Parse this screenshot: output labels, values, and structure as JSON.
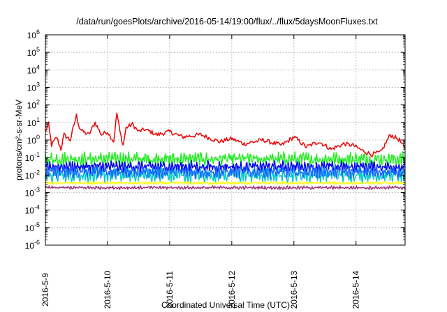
{
  "chart_data": {
    "type": "line",
    "title": "/data/run/goesPlots/archive/2016-05-14/19:00/flux/../flux/5daysMoonFluxes.txt",
    "xlabel": "Coordinated Universal Time (UTC)",
    "ylabel": "protons/cm²-s-sr-MeV",
    "yscale": "log",
    "ylim": [
      1e-06,
      1000000.0
    ],
    "xlim": [
      "2016-5-9",
      "2016-5-14 19:00"
    ],
    "y_ticks": [
      {
        "base": "10",
        "exp": "-6"
      },
      {
        "base": "10",
        "exp": "-5"
      },
      {
        "base": "10",
        "exp": "-4"
      },
      {
        "base": "10",
        "exp": "-3"
      },
      {
        "base": "10",
        "exp": "-2"
      },
      {
        "base": "10",
        "exp": "-1"
      },
      {
        "base": "10",
        "exp": "0"
      },
      {
        "base": "10",
        "exp": "1"
      },
      {
        "base": "10",
        "exp": "2"
      },
      {
        "base": "10",
        "exp": "3"
      },
      {
        "base": "10",
        "exp": "4"
      },
      {
        "base": "10",
        "exp": "5"
      },
      {
        "base": "10",
        "exp": "6"
      }
    ],
    "x_ticks": [
      "2016-5-9",
      "2016-5-10",
      "2016-5-11",
      "2016-5-12",
      "2016-5-13",
      "2016-5-14"
    ],
    "grid": true,
    "series": [
      {
        "color": "#ee0000",
        "x": [
          0,
          0.05,
          0.1,
          0.18,
          0.25,
          0.3,
          0.4,
          0.5,
          0.55,
          0.6,
          0.7,
          0.8,
          0.9,
          1.0,
          1.1,
          1.15,
          1.2,
          1.25,
          1.3,
          1.4,
          1.5,
          1.6,
          1.8,
          2.0,
          2.2,
          2.5,
          2.8,
          3.0,
          3.2,
          3.5,
          3.8,
          4.0,
          4.2,
          4.4,
          4.6,
          4.8,
          4.95,
          5.1,
          5.25,
          5.4,
          5.55,
          5.7,
          5.79
        ],
        "y": [
          3,
          8,
          0.5,
          1.5,
          0.3,
          2,
          1,
          25,
          5,
          3,
          2,
          10,
          2,
          3,
          0.8,
          35,
          3,
          0.5,
          5,
          8,
          3,
          4,
          2,
          3,
          1.5,
          2,
          0.8,
          1.2,
          0.6,
          1,
          0.5,
          1.5,
          0.4,
          0.8,
          0.3,
          0.6,
          0.5,
          0.25,
          0.15,
          0.2,
          2,
          1,
          0.3
        ]
      },
      {
        "color": "#22ee22",
        "x": [
          0,
          5.79
        ],
        "y": [
          0.08,
          0.08
        ],
        "amp": 0.5
      },
      {
        "color": "#00cccc",
        "x": [
          0,
          5.79
        ],
        "y": [
          0.01,
          0.01
        ],
        "amp": 0.55
      },
      {
        "color": "#0000ee",
        "x": [
          0,
          5.79
        ],
        "y": [
          0.03,
          0.03
        ],
        "amp": 0.4
      },
      {
        "color": "#1a66ff",
        "x": [
          0,
          5.79
        ],
        "y": [
          0.015,
          0.015
        ],
        "amp": 0.45
      },
      {
        "color": "#ffff00",
        "x": [
          0,
          5.79
        ],
        "y": [
          0.0035,
          0.0035
        ],
        "amp": 0.1
      },
      {
        "color": "#993377",
        "x": [
          0,
          5.79
        ],
        "y": [
          0.0019,
          0.0019
        ],
        "amp": 0.12
      }
    ]
  }
}
